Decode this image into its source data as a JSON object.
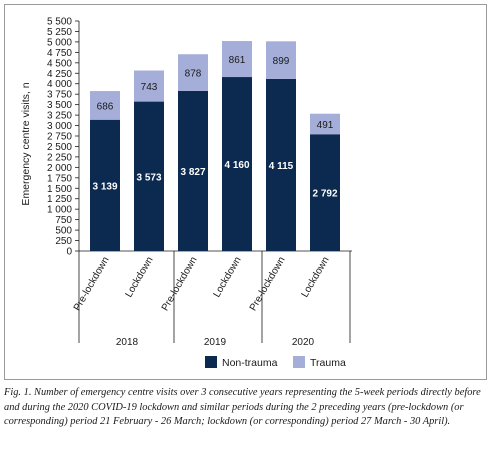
{
  "chart_data": {
    "type": "bar",
    "stacked": true,
    "categories": [
      "Pre-lockdown",
      "Lockdown",
      "Pre-lockdown",
      "Lockdown",
      "Pre-lockdown",
      "Lockdown"
    ],
    "groups": [
      {
        "label": "2018",
        "span": [
          0,
          1
        ]
      },
      {
        "label": "2019",
        "span": [
          2,
          3
        ]
      },
      {
        "label": "2020",
        "span": [
          4,
          5
        ]
      }
    ],
    "series": [
      {
        "name": "Non-trauma",
        "color": "#0c2a4f",
        "values": [
          3139,
          3573,
          3827,
          4160,
          4115,
          2792
        ],
        "labels": [
          "3 139",
          "3 573",
          "3 827",
          "4 160",
          "4 115",
          "2 792"
        ]
      },
      {
        "name": "Trauma",
        "color": "#a4aed8",
        "values": [
          686,
          743,
          878,
          861,
          899,
          491
        ],
        "labels": [
          "686",
          "743",
          "878",
          "861",
          "899",
          "491"
        ]
      }
    ],
    "ylim": [
      0,
      5500
    ],
    "yticks": [
      0,
      250,
      500,
      750,
      1000,
      1250,
      1500,
      1750,
      2000,
      2250,
      2500,
      2750,
      3000,
      3250,
      3500,
      3750,
      4000,
      4250,
      4500,
      4750,
      5000,
      5250,
      5500
    ],
    "ytick_labels": [
      "0",
      "250",
      "500",
      "750",
      "1 000",
      "1 250",
      "1 500",
      "1 750",
      "2 000",
      "2 250",
      "2 500",
      "2 750",
      "3 000",
      "3 250",
      "3 500",
      "3 750",
      "4 000",
      "4 250",
      "4 500",
      "4 750",
      "5 000",
      "5 250",
      "5 500"
    ],
    "ylabel": "Emergency centre visits, n",
    "xlabel": "",
    "title": "",
    "legend": {
      "placement": "bottom",
      "entries": [
        "Non-trauma",
        "Trauma"
      ]
    },
    "grid": false
  },
  "caption": {
    "label": "Fig. 1.",
    "text": "Number of emergency centre visits over 3 consecutive years representing the 5-week periods directly before and during the 2020 COVID-19 lockdown and similar periods during the 2 preceding years (pre-lockdown (or corresponding) period 21 February - 26 March; lockdown (or corresponding) period 27 March - 30 April)."
  }
}
